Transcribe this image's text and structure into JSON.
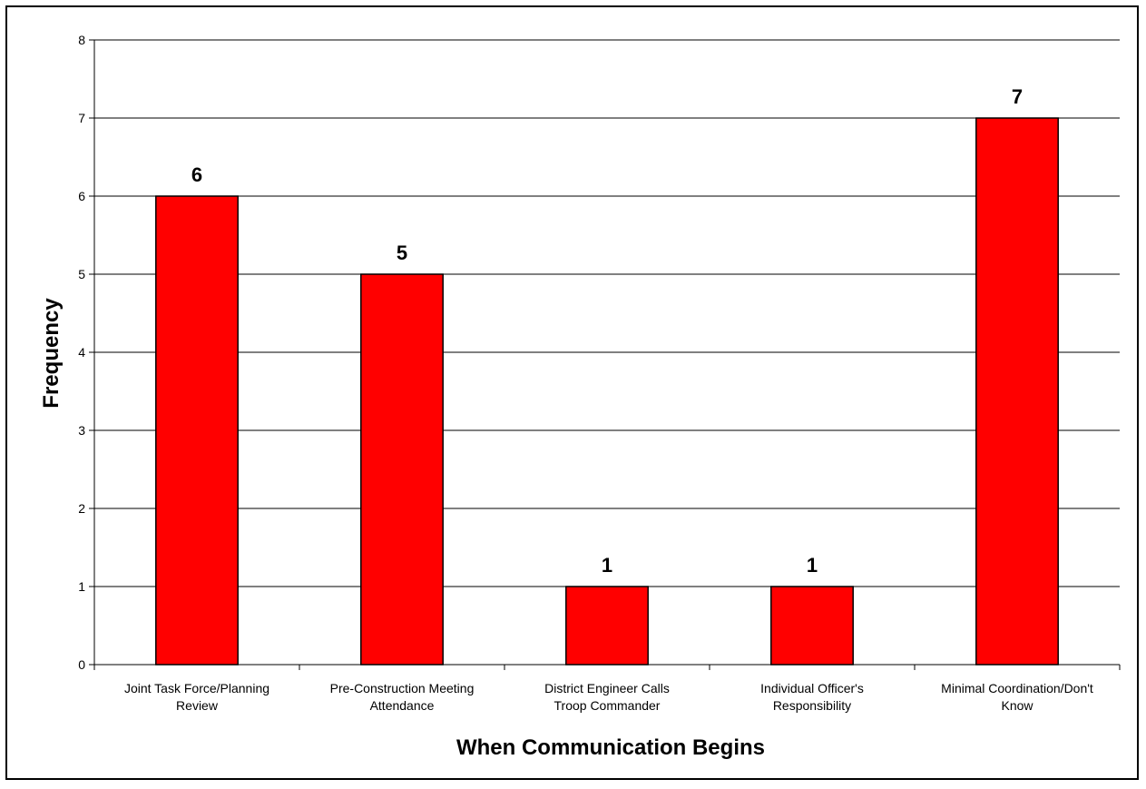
{
  "chart_data": {
    "type": "bar",
    "title": "",
    "xlabel": "When Communication Begins",
    "ylabel": "Frequency",
    "categories": [
      [
        "Joint Task Force/Planning",
        "Review"
      ],
      [
        "Pre-Construction Meeting",
        "Attendance"
      ],
      [
        "District Engineer Calls",
        "Troop Commander"
      ],
      [
        "Individual Officer's",
        "Responsibility"
      ],
      [
        "Minimal Coordination/Don't",
        "Know"
      ]
    ],
    "values": [
      6,
      5,
      1,
      1,
      7
    ],
    "data_labels": [
      "6",
      "5",
      "1",
      "1",
      "7"
    ],
    "ylim": [
      0,
      8
    ],
    "yticks": [
      "0",
      "1",
      "2",
      "3",
      "4",
      "5",
      "6",
      "7",
      "8"
    ],
    "grid": "horizontal",
    "legend": "none",
    "colors": {
      "bar": "#ff0000",
      "bar_edge": "#000000",
      "grid": "#000000",
      "frame": "#000000",
      "background": "#ffffff"
    }
  }
}
